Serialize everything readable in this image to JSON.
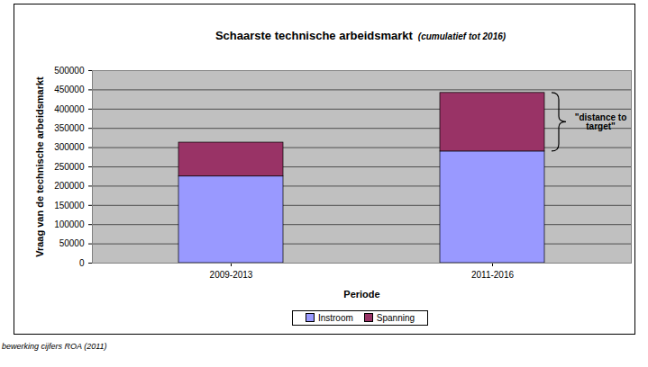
{
  "chart_data": {
    "type": "bar",
    "stacked": true,
    "title": "Schaarste technische arbeidsmarkt",
    "subtitle": "(cumulatief tot 2016)",
    "x_label": "Periode",
    "y_label": "Vraag van de technische arbeidsmarkt",
    "categories": [
      "2009-2013",
      "2011-2016"
    ],
    "series": [
      {
        "name": "Instroom",
        "color": "#9999ff",
        "values": [
          225000,
          290000
        ]
      },
      {
        "name": "Spanning",
        "color": "#993366",
        "values": [
          88000,
          152000
        ]
      }
    ],
    "ylim": [
      0,
      500000
    ],
    "yticks": [
      0,
      50000,
      100000,
      150000,
      200000,
      250000,
      300000,
      350000,
      400000,
      450000,
      500000
    ],
    "grid": true,
    "legend": "bottom",
    "annotation": "\"distance to target\"",
    "caption": "bewerking cijfers ROA (2011)"
  }
}
